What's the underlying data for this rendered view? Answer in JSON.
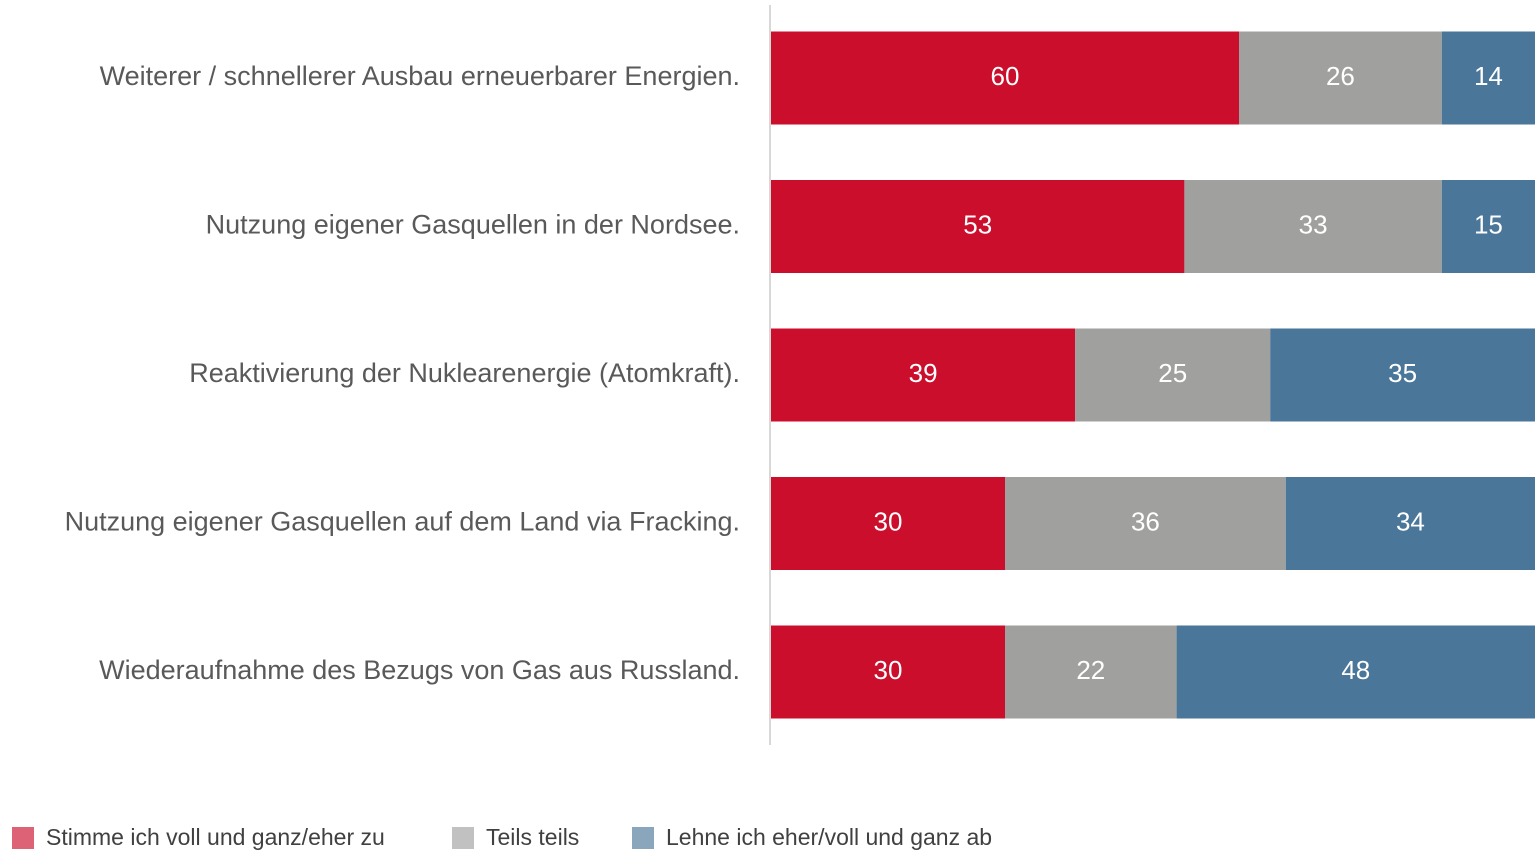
{
  "chart_data": {
    "type": "stacked_barh",
    "categories": [
      "Weiterer / schnellerer Ausbau erneuerbarer Energien.",
      "Nutzung eigener Gasquellen in der Nordsee.",
      "Reaktivierung der Nuklearenergie (Atomkraft).",
      "Nutzung eigener Gasquellen auf dem Land via Fracking.",
      "Wiederaufnahme des Bezugs von Gas aus Russland."
    ],
    "series": [
      {
        "name": "Stimme ich voll und ganz/eher zu",
        "color": "#cc0e2d",
        "values": [
          60,
          53,
          39,
          30,
          30
        ]
      },
      {
        "name": "Teils teils",
        "color": "#a0a09f",
        "values": [
          26,
          33,
          25,
          36,
          22
        ]
      },
      {
        "name": "Lehne ich eher/voll und ganz ab",
        "color": "#4a7699",
        "values": [
          14,
          15,
          35,
          34,
          48
        ]
      }
    ],
    "xlim": [
      0,
      100
    ]
  }
}
